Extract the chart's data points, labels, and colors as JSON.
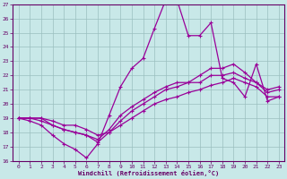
{
  "xlabel": "Windchill (Refroidissement éolien,°C)",
  "bg_color": "#c8e8e8",
  "line_color": "#990099",
  "grid_color": "#9bbfbf",
  "axis_color": "#660066",
  "spine_color": "#660066",
  "xlim_min": -0.5,
  "xlim_max": 23.5,
  "ylim_min": 16,
  "ylim_max": 27,
  "yticks": [
    16,
    17,
    18,
    19,
    20,
    21,
    22,
    23,
    24,
    25,
    26,
    27
  ],
  "xticks": [
    0,
    1,
    2,
    3,
    4,
    5,
    6,
    7,
    8,
    9,
    10,
    11,
    12,
    13,
    14,
    15,
    16,
    17,
    18,
    19,
    20,
    21,
    22,
    23
  ],
  "line1_x": [
    0,
    1,
    2,
    3,
    4,
    5,
    6,
    7,
    8,
    9,
    10,
    11,
    12,
    13,
    14,
    15,
    16,
    17,
    18,
    19,
    20,
    21,
    22,
    23
  ],
  "line1_y": [
    19.0,
    18.8,
    18.5,
    17.8,
    17.2,
    16.8,
    16.2,
    17.2,
    19.2,
    21.2,
    22.5,
    23.2,
    25.3,
    27.3,
    27.3,
    24.8,
    24.8,
    25.7,
    21.8,
    21.5,
    20.5,
    22.8,
    20.2,
    20.5
  ],
  "line2_x": [
    0,
    1,
    2,
    3,
    4,
    5,
    6,
    7,
    8,
    9,
    10,
    11,
    12,
    13,
    14,
    15,
    16,
    17,
    18,
    19,
    20,
    21,
    22,
    23
  ],
  "line2_y": [
    19.0,
    19.0,
    19.0,
    18.5,
    18.2,
    18.0,
    17.8,
    17.5,
    18.2,
    19.2,
    19.8,
    20.3,
    20.8,
    21.2,
    21.5,
    21.5,
    22.0,
    22.5,
    22.5,
    22.8,
    22.2,
    21.5,
    21.0,
    21.2
  ],
  "line3_x": [
    0,
    1,
    2,
    3,
    4,
    5,
    6,
    7,
    8,
    9,
    10,
    11,
    12,
    13,
    14,
    15,
    16,
    17,
    18,
    19,
    20,
    21,
    22,
    23
  ],
  "line3_y": [
    19.0,
    19.0,
    18.8,
    18.5,
    18.2,
    18.0,
    17.8,
    17.3,
    18.0,
    18.8,
    19.5,
    20.0,
    20.5,
    21.0,
    21.2,
    21.5,
    21.5,
    22.0,
    22.0,
    22.2,
    21.8,
    21.5,
    20.8,
    21.0
  ],
  "line4_x": [
    0,
    1,
    2,
    3,
    4,
    5,
    6,
    7,
    8,
    9,
    10,
    11,
    12,
    13,
    14,
    15,
    16,
    17,
    18,
    19,
    20,
    21,
    22,
    23
  ],
  "line4_y": [
    19.0,
    19.0,
    19.0,
    18.8,
    18.5,
    18.5,
    18.2,
    17.8,
    18.0,
    18.5,
    19.0,
    19.5,
    20.0,
    20.3,
    20.5,
    20.8,
    21.0,
    21.3,
    21.5,
    21.8,
    21.5,
    21.2,
    20.5,
    20.5
  ]
}
